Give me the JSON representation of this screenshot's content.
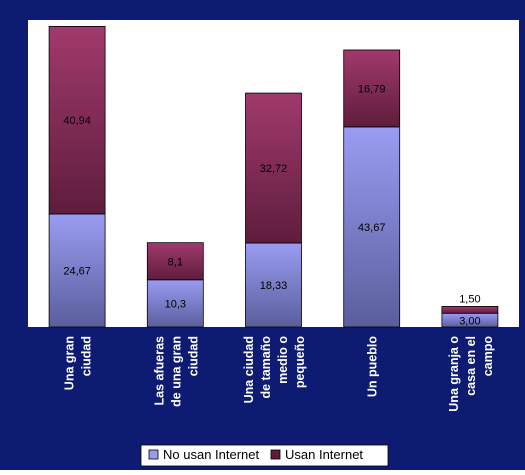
{
  "chart_data": {
    "type": "bar",
    "stacked": true,
    "title": "",
    "xlabel": "",
    "ylabel": "",
    "ylim": [
      0,
      67
    ],
    "grid": false,
    "legend_position": "bottom",
    "categories": [
      [
        "Una gran",
        "ciudad"
      ],
      [
        "Las afueras",
        "de una gran",
        "ciudad"
      ],
      [
        "Una ciudad",
        "de tamaño",
        "medio o",
        "pequeño"
      ],
      [
        "Un pueblo"
      ],
      [
        "Una granja o",
        "casa en el",
        "campo"
      ]
    ],
    "series": [
      {
        "name": "No usan Internet",
        "values": [
          24.67,
          10.3,
          18.33,
          43.67,
          3.0
        ],
        "labels": [
          "24,67",
          "10,3",
          "18,33",
          "43,67",
          "3,00"
        ],
        "color_light": "#9a9cf2",
        "color_dark": "#5a5e9c"
      },
      {
        "name": "Usan Internet",
        "values": [
          40.94,
          8.1,
          32.72,
          16.79,
          1.5
        ],
        "labels": [
          "40,94",
          "8,1",
          "32,72",
          "16,79",
          "1,50"
        ],
        "color_light": "#a13a6c",
        "color_dark": "#5e1d3c"
      }
    ]
  },
  "colors": {
    "background": "#0d1b72",
    "plot_area": "#ffffff",
    "axis_label_text": "#ffffff"
  }
}
